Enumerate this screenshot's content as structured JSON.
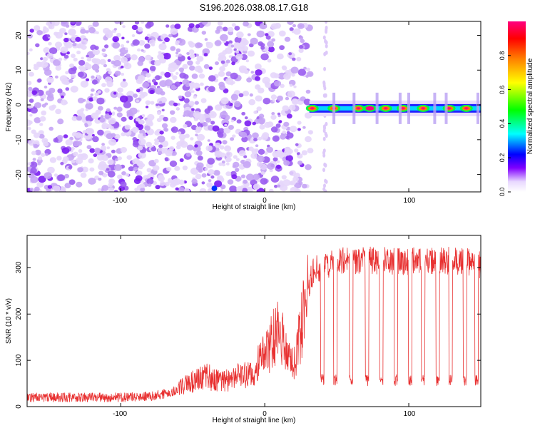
{
  "figure_title": "S196.2026.038.08.17.G18",
  "chart_data": [
    {
      "type": "heatmap",
      "title": "S196.2026.038.08.17.G18",
      "xlabel": "Height of straight line (km)",
      "ylabel": "Frequency (Hz)",
      "xlim": [
        -165,
        150
      ],
      "ylim": [
        -25,
        24
      ],
      "xticks": [
        -100,
        0,
        100
      ],
      "xtick_labels": [
        "-100",
        "0",
        "100"
      ],
      "yticks": [
        -20,
        -10,
        0,
        10,
        20
      ],
      "ytick_labels": [
        "-20",
        "-10",
        "0",
        "10",
        "20"
      ],
      "colorbar": {
        "label": "Normalized spectral amplitude",
        "range": [
          0,
          1
        ],
        "ticks": [
          0.0,
          0.2,
          0.4,
          0.6,
          0.8
        ],
        "tick_labels": [
          "0.0",
          "0.2",
          "0.4",
          "0.6",
          "0.8"
        ],
        "colors": [
          "#ffffff",
          "#e0c8ff",
          "#8000ff",
          "#0000ff",
          "#00ffff",
          "#00ff00",
          "#ffff00",
          "#ff8000",
          "#ff0000",
          "#ff0080"
        ]
      },
      "noise_region_x": [
        -165,
        32
      ],
      "gap_x": [
        -36,
        -34
      ],
      "signal_band": {
        "frequency_hz": -1,
        "start_x": 31,
        "hot_spots_x": [
          33,
          48,
          65,
          73,
          84,
          96,
          110,
          128,
          140
        ],
        "peak_x": 73
      }
    },
    {
      "type": "line",
      "xlabel": "Height of straight line (km)",
      "ylabel": "SNR (10 * v/v)",
      "xlim": [
        -165,
        150
      ],
      "ylim": [
        0,
        370
      ],
      "xticks": [
        -100,
        0,
        100
      ],
      "xtick_labels": [
        "-100",
        "0",
        "100"
      ],
      "yticks": [
        0,
        100,
        200,
        300
      ],
      "ytick_labels": [
        "0",
        "100",
        "200",
        "300"
      ],
      "series": [
        {
          "name": "SNR",
          "color": "#e83030",
          "x": [
            -165,
            -140,
            -120,
            -100,
            -80,
            -65,
            -50,
            -40,
            -30,
            -20,
            -10,
            0,
            5,
            10,
            15,
            20,
            25,
            30,
            35,
            40,
            50,
            60,
            70,
            80,
            90,
            100,
            110,
            120,
            130,
            140,
            150
          ],
          "y": [
            20,
            20,
            20,
            20,
            22,
            30,
            55,
            65,
            55,
            65,
            70,
            110,
            140,
            170,
            110,
            90,
            160,
            260,
            300,
            300,
            315,
            315,
            315,
            315,
            315,
            315,
            315,
            315,
            315,
            315,
            305
          ],
          "dropouts_x": [
            40,
            49,
            60,
            71,
            81,
            91,
            101,
            110,
            120,
            129,
            139,
            147
          ]
        }
      ]
    }
  ]
}
